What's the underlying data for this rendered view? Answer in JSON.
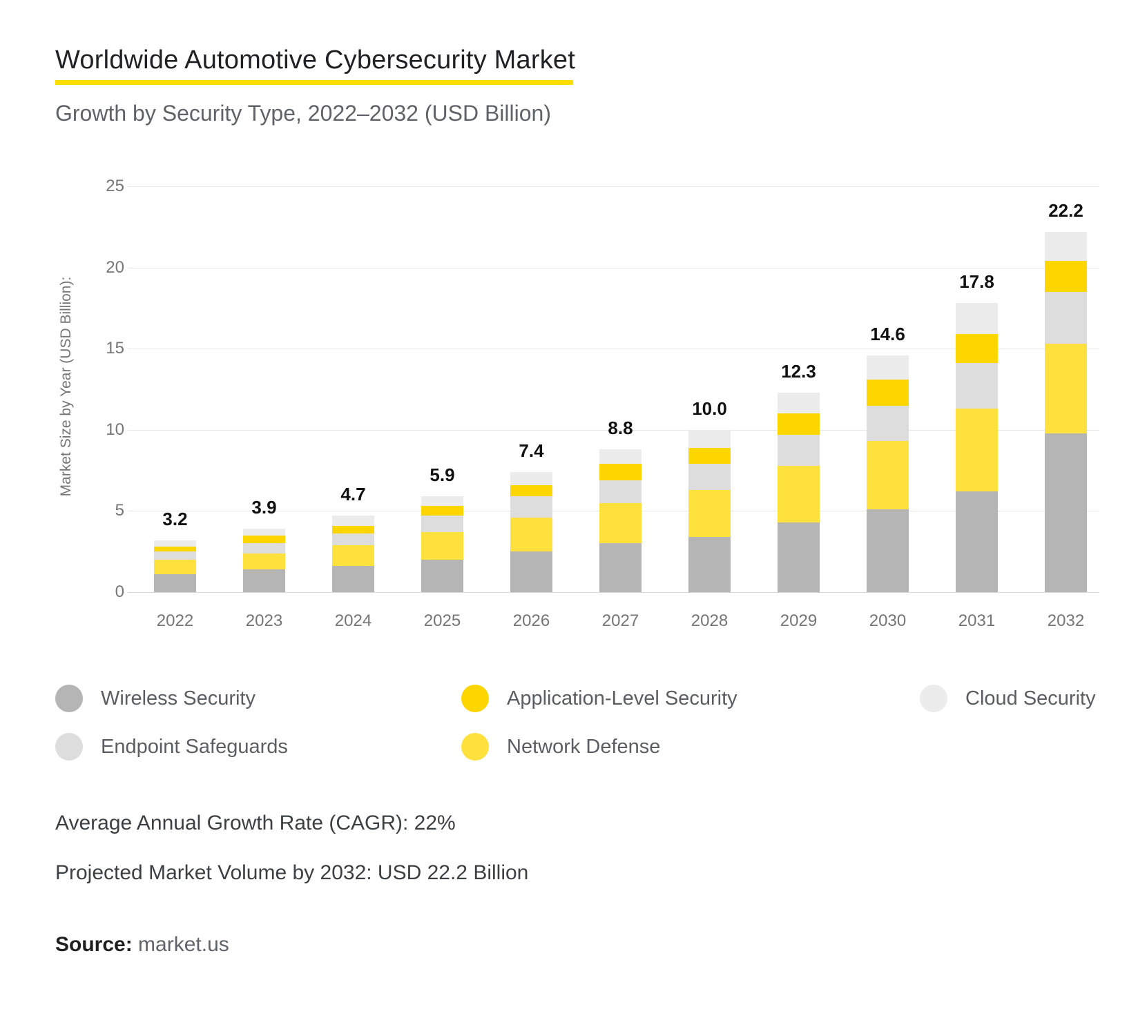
{
  "header": {
    "title": "Worldwide Automotive Cybersecurity Market",
    "subtitle": "Growth by Security Type, 2022–2032 (USD Billion)",
    "accent_color": "#FFDD00"
  },
  "chart_data": {
    "type": "bar",
    "stacked": true,
    "title": "Worldwide Automotive Cybersecurity Market",
    "subtitle": "Growth by Security Type, 2022–2032 (USD Billion)",
    "xlabel": "",
    "ylabel": "Market Size by Year (USD Billion):",
    "ylim": [
      0,
      25
    ],
    "yticks": [
      0,
      5,
      10,
      15,
      20,
      25
    ],
    "grid": "horizontal",
    "legend_position": "bottom",
    "categories": [
      "2022",
      "2023",
      "2024",
      "2025",
      "2026",
      "2027",
      "2028",
      "2029",
      "2030",
      "2031",
      "2032"
    ],
    "totals": [
      3.2,
      3.9,
      4.7,
      5.9,
      7.4,
      8.8,
      10.0,
      12.3,
      14.6,
      17.8,
      22.2
    ],
    "total_labels": [
      "3.2",
      "3.9",
      "4.7",
      "5.9",
      "7.4",
      "8.8",
      "10.0",
      "12.3",
      "14.6",
      "17.8",
      "22.2"
    ],
    "series": [
      {
        "name": "Wireless Security",
        "color": "#B5B5B5",
        "values": [
          1.1,
          1.4,
          1.6,
          2.0,
          2.5,
          3.0,
          3.4,
          4.3,
          5.1,
          6.2,
          9.8
        ]
      },
      {
        "name": "Network Defense",
        "color": "#FEE13C",
        "values": [
          0.9,
          1.0,
          1.3,
          1.7,
          2.1,
          2.5,
          2.9,
          3.5,
          4.2,
          5.1,
          5.5
        ]
      },
      {
        "name": "Endpoint Safeguards",
        "color": "#DDDDDD",
        "values": [
          0.5,
          0.6,
          0.7,
          1.0,
          1.3,
          1.4,
          1.6,
          1.9,
          2.2,
          2.8,
          3.2
        ]
      },
      {
        "name": "Application-Level Security",
        "color": "#FDD600",
        "values": [
          0.3,
          0.5,
          0.5,
          0.6,
          0.7,
          1.0,
          1.0,
          1.3,
          1.6,
          1.8,
          1.9
        ]
      },
      {
        "name": "Cloud Security",
        "color": "#ECECEC",
        "values": [
          0.4,
          0.4,
          0.6,
          0.6,
          0.8,
          0.9,
          1.1,
          1.3,
          1.5,
          1.9,
          1.8
        ]
      }
    ],
    "legend": [
      {
        "label": "Wireless Security",
        "series": "Wireless Security",
        "row": 0,
        "col": 0
      },
      {
        "label": "Application-Level Security",
        "series": "Application-Level Security",
        "row": 0,
        "col": 1
      },
      {
        "label": "Cloud Security",
        "series": "Cloud Security",
        "row": 0,
        "col": 2
      },
      {
        "label": "Endpoint Safeguards",
        "series": "Endpoint Safeguards",
        "row": 1,
        "col": 0
      },
      {
        "label": "Network Defense",
        "series": "Network Defense",
        "row": 1,
        "col": 1
      }
    ]
  },
  "footer": {
    "cagr_line": "Average Annual Growth Rate (CAGR): 22%",
    "projection_line": "Projected Market Volume by 2032: USD 22.2 Billion",
    "source_label": "Source:",
    "source_value": "market.us"
  }
}
